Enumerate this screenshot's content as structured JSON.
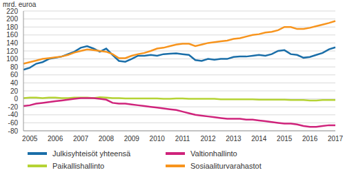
{
  "chart_data": {
    "type": "line",
    "y_label": "mrd. euroa",
    "categories": [
      null,
      "2005",
      null,
      null,
      null,
      "2006",
      null,
      null,
      null,
      "2007",
      null,
      null,
      null,
      "2008",
      null,
      null,
      null,
      "2009",
      null,
      null,
      null,
      "2010",
      null,
      null,
      null,
      "2011",
      null,
      null,
      null,
      "2012",
      null,
      null,
      null,
      "2013",
      null,
      null,
      null,
      "2014",
      null,
      null,
      null,
      "2015",
      null,
      null,
      null,
      "2016",
      null,
      null,
      null,
      "2017"
    ],
    "series": [
      {
        "name": "Julkisyhteisöt yhteensä",
        "color": "#1a6ea8",
        "values": [
          73,
          78,
          88,
          92,
          100,
          103,
          106,
          112,
          118,
          128,
          132,
          126,
          118,
          126,
          110,
          95,
          93,
          100,
          108,
          108,
          110,
          108,
          112,
          113,
          114,
          112,
          110,
          97,
          95,
          100,
          98,
          100,
          100,
          105,
          106,
          106,
          108,
          110,
          108,
          112,
          120,
          122,
          112,
          110,
          103,
          105,
          110,
          115,
          124,
          129
        ]
      },
      {
        "name": "Paikallishallinto",
        "color": "#b5d334",
        "values": [
          2,
          3,
          3,
          2,
          3,
          3,
          2,
          2,
          3,
          3,
          3,
          2,
          4,
          3,
          2,
          2,
          1,
          1,
          1,
          1,
          1,
          1,
          0,
          0,
          1,
          1,
          0,
          0,
          0,
          0,
          0,
          -1,
          -1,
          -1,
          -1,
          -1,
          -1,
          -2,
          -2,
          -2,
          -2,
          -2,
          -3,
          -3,
          -3,
          -4,
          -4,
          -3,
          -3,
          -3
        ]
      },
      {
        "name": "Valtionhallinto",
        "color": "#cf237b",
        "values": [
          -18,
          -16,
          -12,
          -10,
          -8,
          -6,
          -4,
          -2,
          0,
          2,
          2,
          2,
          0,
          -2,
          -10,
          -12,
          -12,
          -14,
          -16,
          -18,
          -20,
          -22,
          -24,
          -26,
          -28,
          -32,
          -36,
          -40,
          -42,
          -44,
          -46,
          -48,
          -50,
          -50,
          -50,
          -52,
          -52,
          -54,
          -56,
          -58,
          -60,
          -62,
          -62,
          -64,
          -68,
          -70,
          -70,
          -68,
          -66,
          -66
        ]
      },
      {
        "name": "Sosiaaliturvarahastot",
        "color": "#f7941d",
        "values": [
          88,
          92,
          96,
          100,
          102,
          104,
          106,
          110,
          116,
          120,
          124,
          122,
          120,
          118,
          112,
          102,
          102,
          108,
          112,
          115,
          120,
          126,
          128,
          132,
          136,
          138,
          138,
          132,
          136,
          140,
          142,
          144,
          146,
          150,
          152,
          156,
          160,
          162,
          166,
          168,
          172,
          180,
          180,
          175,
          175,
          178,
          182,
          186,
          190,
          195
        ]
      }
    ],
    "ylim": [
      -80,
      220
    ],
    "yticks": [
      -80,
      -60,
      -40,
      -20,
      0,
      20,
      40,
      60,
      80,
      100,
      120,
      140,
      160,
      180,
      200,
      220
    ],
    "grid": true
  }
}
